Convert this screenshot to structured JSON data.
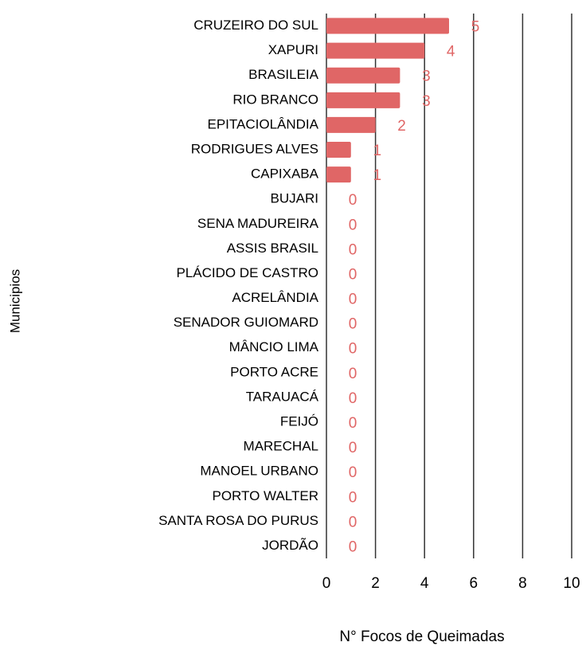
{
  "chart_data": {
    "type": "barh",
    "categories": [
      "CRUZEIRO DO SUL",
      "XAPURI",
      "BRASILEIA",
      "RIO BRANCO",
      "EPITACIOLÂNDIA",
      "RODRIGUES ALVES",
      "CAPIXABA",
      "BUJARI",
      "SENA MADUREIRA",
      "ASSIS BRASIL",
      "PLÁCIDO DE CASTRO",
      "ACRELÂNDIA",
      "SENADOR GUIOMARD",
      "MÂNCIO LIMA",
      "PORTO ACRE",
      "TARAUACÁ",
      "FEIJÓ",
      "MARECHAL",
      "MANOEL URBANO",
      "PORTO WALTER",
      "SANTA ROSA DO PURUS",
      "JORDÃO"
    ],
    "values": [
      5,
      4,
      3,
      3,
      2,
      1,
      1,
      0,
      0,
      0,
      0,
      0,
      0,
      0,
      0,
      0,
      0,
      0,
      0,
      0,
      0,
      0
    ],
    "color": "#e06666",
    "xlim": [
      0,
      10
    ],
    "xticks": [
      0,
      2,
      4,
      6,
      8,
      10
    ],
    "grid": true,
    "xlabel": "N° Focos de Queimadas",
    "ylabel": "Municipios"
  }
}
